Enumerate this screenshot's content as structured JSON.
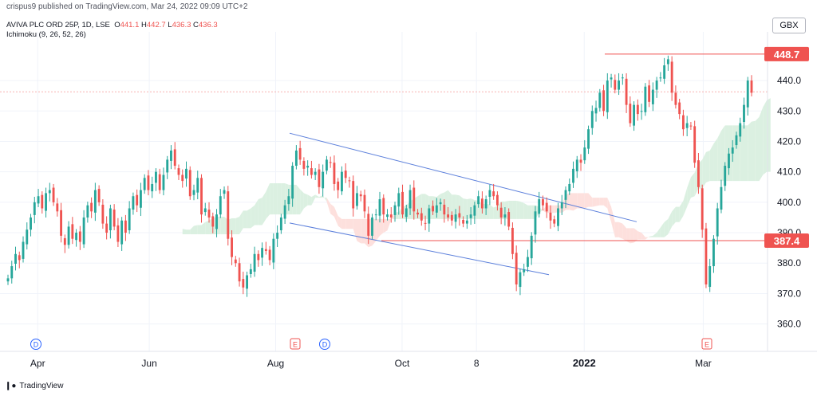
{
  "header": {
    "publisher": "crispus9 published on TradingView.com, Mar 24, 2022 09:09 UTC+2",
    "symbol": "AVIVA PLC ORD 25P, 1D, LSE",
    "ohlc": [
      {
        "label": "O",
        "value": "441.1"
      },
      {
        "label": "H",
        "value": "442.7"
      },
      {
        "label": "L",
        "value": "436.3"
      },
      {
        "label": "C",
        "value": "436.3"
      }
    ],
    "indicator": "Ichimoku (9, 26, 52, 26)",
    "currency": "GBX"
  },
  "footer": {
    "brand": "TradingView",
    "logo": "tradingview-logo-icon"
  },
  "colors": {
    "up": "#26a69a",
    "down": "#ef5350",
    "trendline": "#5b7fdb",
    "level": "#ef5350",
    "cloud_up": "#dbf0e1",
    "cloud_down": "#fde0dd",
    "last_price_line": "#f7b2b0"
  },
  "chart_data": {
    "type": "candlestick",
    "title": "AVIVA PLC ORD 25P, 1D, LSE",
    "ylim": [
      351,
      456
    ],
    "y_ticks": [
      "360.0",
      "370.0",
      "380.0",
      "390.0",
      "400.0",
      "410.0",
      "420.0",
      "430.0",
      "440.0"
    ],
    "x_ticks": [
      "Apr",
      "Jun",
      "Aug",
      "Oct",
      "8",
      "2022",
      "Mar"
    ],
    "price_labels": [
      "448.7",
      "387.4"
    ],
    "last_price": 436.3,
    "event_markers": [
      {
        "text": "D",
        "date": "Apr"
      },
      {
        "text": "E",
        "date": "Aug"
      },
      {
        "text": "D",
        "date": "Aug"
      },
      {
        "text": "E",
        "date": "Mar"
      }
    ],
    "horizontal_levels": [
      {
        "value": 448.7
      },
      {
        "value": 387.4
      }
    ],
    "trendlines": [
      {
        "from": [
          0,
          422.7
        ],
        "to": [
          1,
          393.6
        ]
      },
      {
        "from": [
          0,
          393.2
        ],
        "to": [
          1,
          376.2
        ]
      }
    ],
    "closes": [
      375,
      379,
      383,
      381,
      387,
      391,
      395,
      400,
      402,
      398,
      403,
      404,
      400,
      397,
      389,
      386,
      392,
      388,
      390,
      387,
      395,
      399,
      397,
      404,
      400,
      393,
      390,
      398,
      392,
      387,
      394,
      390,
      398,
      402,
      399,
      404,
      408,
      404,
      406,
      410,
      404,
      409,
      414,
      417,
      412,
      409,
      407,
      411,
      402,
      404,
      408,
      396,
      398,
      395,
      392,
      396,
      402,
      404,
      388,
      382,
      380,
      374,
      372,
      376,
      378,
      383,
      381,
      385,
      384,
      381,
      388,
      390,
      395,
      399,
      402,
      412,
      417,
      414,
      411,
      412,
      409,
      410,
      405,
      410,
      414,
      413,
      406,
      404,
      410,
      408,
      407,
      398,
      403,
      402,
      397,
      389,
      395,
      396,
      401,
      396,
      396,
      395,
      399,
      403,
      396,
      398,
      404,
      397,
      396,
      394,
      393,
      398,
      397,
      399,
      400,
      396,
      395,
      394,
      396,
      395,
      393,
      394,
      396,
      399,
      402,
      398,
      401,
      404,
      402,
      399,
      395,
      396,
      392,
      383,
      373,
      377,
      378,
      382,
      389,
      397,
      401,
      399,
      397,
      394,
      393,
      398,
      400,
      404,
      406,
      411,
      414,
      413,
      418,
      424,
      430,
      431,
      436,
      430,
      440,
      441,
      437,
      440,
      441,
      432,
      426,
      432,
      429,
      430,
      438,
      433,
      437,
      440,
      441,
      445,
      447,
      436,
      432,
      429,
      424,
      426,
      425,
      413,
      405,
      391,
      373,
      379,
      388,
      398,
      405,
      412,
      416,
      418,
      422,
      426,
      432,
      440,
      436
    ]
  }
}
